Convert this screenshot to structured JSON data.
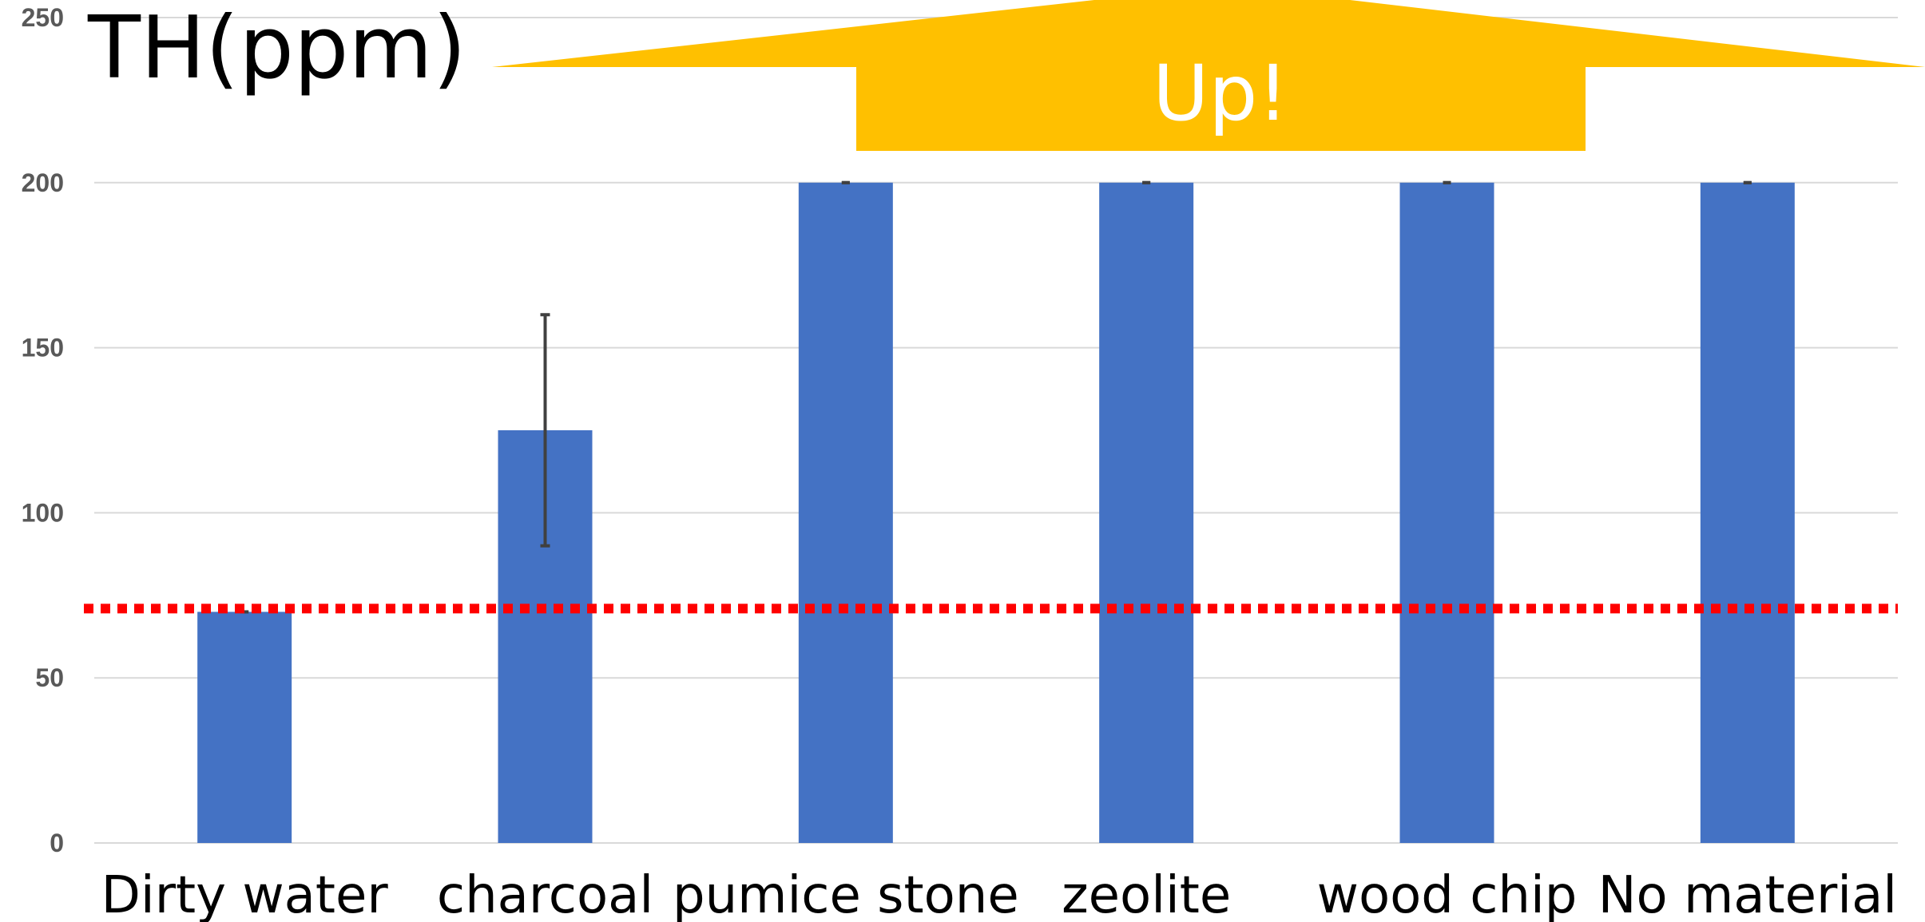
{
  "chart_data": {
    "type": "bar",
    "title": "TH(ppm)",
    "categories": [
      "Dirty water",
      "charcoal",
      "pumice stone",
      "zeolite",
      "wood chip",
      "No material"
    ],
    "values": [
      70,
      125,
      200,
      200,
      200,
      200
    ],
    "error_bars": [
      0,
      35,
      0,
      0,
      0,
      0
    ],
    "ylim": [
      0,
      250
    ],
    "yticks": [
      0,
      50,
      100,
      150,
      200,
      250
    ],
    "reference_line": {
      "value": 71,
      "style": "dotted",
      "color": "#ff0000"
    },
    "grid": true,
    "bar_color": "#4472c4",
    "gridline_color": "#d9d9d9",
    "arrow_color": "#ffc000",
    "error_bar_color": "#404040",
    "annotation": "Up!"
  }
}
